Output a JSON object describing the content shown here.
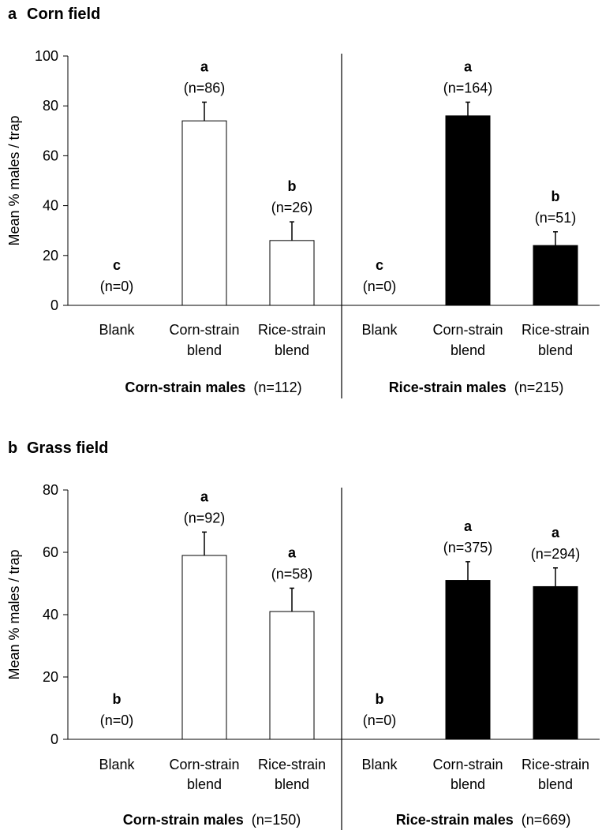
{
  "chart_data": [
    {
      "type": "bar",
      "panel_letter": "a",
      "title": "Corn field",
      "ylabel": "Mean % males / trap",
      "ylim": [
        0,
        100
      ],
      "yticks": [
        0,
        20,
        40,
        60,
        80,
        100
      ],
      "groups": [
        {
          "name": "Corn-strain males",
          "n": "(n=112)",
          "bar_color": "#ffffff",
          "bars": [
            {
              "category": [
                "Blank"
              ],
              "value": 0,
              "error": 0,
              "sig": "c",
              "n": "(n=0)"
            },
            {
              "category": [
                "Corn-strain",
                "blend"
              ],
              "value": 74,
              "error": 7.5,
              "sig": "a",
              "n": "(n=86)"
            },
            {
              "category": [
                "Rice-strain",
                "blend"
              ],
              "value": 26,
              "error": 7.5,
              "sig": "b",
              "n": "(n=26)"
            }
          ]
        },
        {
          "name": "Rice-strain males",
          "n": "(n=215)",
          "bar_color": "#000000",
          "bars": [
            {
              "category": [
                "Blank"
              ],
              "value": 0,
              "error": 0,
              "sig": "c",
              "n": "(n=0)"
            },
            {
              "category": [
                "Corn-strain",
                "blend"
              ],
              "value": 76,
              "error": 5.5,
              "sig": "a",
              "n": "(n=164)"
            },
            {
              "category": [
                "Rice-strain",
                "blend"
              ],
              "value": 24,
              "error": 5.5,
              "sig": "b",
              "n": "(n=51)"
            }
          ]
        }
      ]
    },
    {
      "type": "bar",
      "panel_letter": "b",
      "title": "Grass field",
      "ylabel": "Mean % males / trap",
      "ylim": [
        0,
        80
      ],
      "yticks": [
        0,
        20,
        40,
        60,
        80
      ],
      "groups": [
        {
          "name": "Corn-strain males",
          "n": "(n=150)",
          "bar_color": "#ffffff",
          "bars": [
            {
              "category": [
                "Blank"
              ],
              "value": 0,
              "error": 0,
              "sig": "b",
              "n": "(n=0)"
            },
            {
              "category": [
                "Corn-strain",
                "blend"
              ],
              "value": 59,
              "error": 7.5,
              "sig": "a",
              "n": "(n=92)"
            },
            {
              "category": [
                "Rice-strain",
                "blend"
              ],
              "value": 41,
              "error": 7.5,
              "sig": "a",
              "n": "(n=58)"
            }
          ]
        },
        {
          "name": "Rice-strain males",
          "n": "(n=669)",
          "bar_color": "#000000",
          "bars": [
            {
              "category": [
                "Blank"
              ],
              "value": 0,
              "error": 0,
              "sig": "b",
              "n": "(n=0)"
            },
            {
              "category": [
                "Corn-strain",
                "blend"
              ],
              "value": 51,
              "error": 6,
              "sig": "a",
              "n": "(n=375)"
            },
            {
              "category": [
                "Rice-strain",
                "blend"
              ],
              "value": 49,
              "error": 6,
              "sig": "a",
              "n": "(n=294)"
            }
          ]
        }
      ]
    }
  ]
}
